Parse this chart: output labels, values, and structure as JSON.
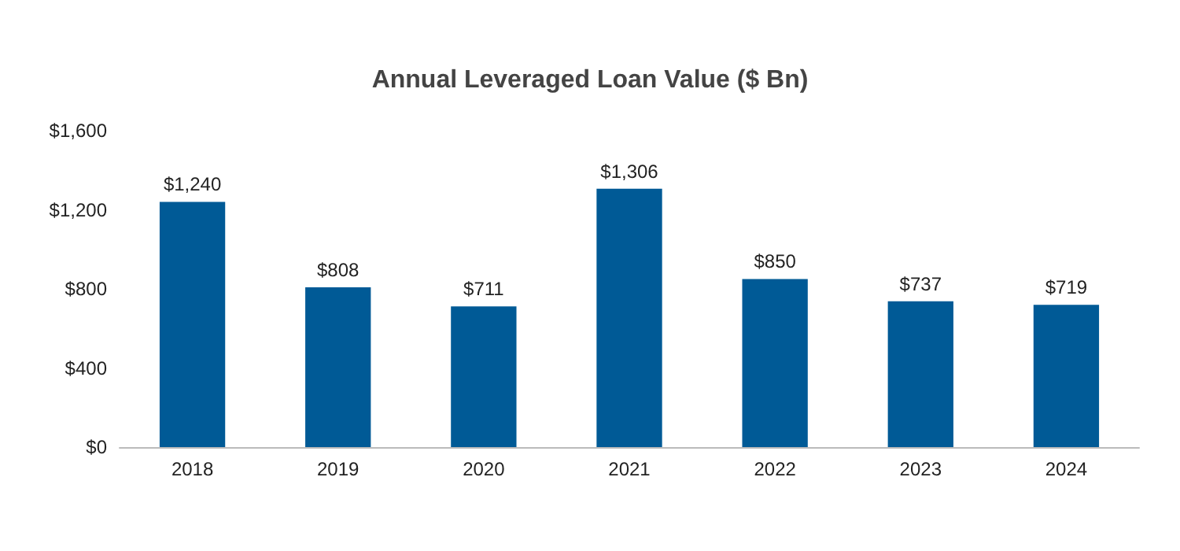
{
  "chart_data": {
    "type": "bar",
    "title": "Annual Leveraged Loan Value ($ Bn)",
    "categories": [
      "2018",
      "2019",
      "2020",
      "2021",
      "2022",
      "2023",
      "2024"
    ],
    "values": [
      1240,
      808,
      711,
      1306,
      850,
      737,
      719
    ],
    "value_labels": [
      "$1,240",
      "$808",
      "$711",
      "$1,306",
      "$850",
      "$737",
      "$719"
    ],
    "color": "#005a96",
    "ylim": [
      0,
      1600
    ],
    "yticks": [
      {
        "value": 0,
        "label": "$0"
      },
      {
        "value": 400,
        "label": "$400"
      },
      {
        "value": 800,
        "label": "$800"
      },
      {
        "value": 1200,
        "label": "$1,200"
      },
      {
        "value": 1600,
        "label": "$1,600"
      }
    ],
    "grid": false
  }
}
